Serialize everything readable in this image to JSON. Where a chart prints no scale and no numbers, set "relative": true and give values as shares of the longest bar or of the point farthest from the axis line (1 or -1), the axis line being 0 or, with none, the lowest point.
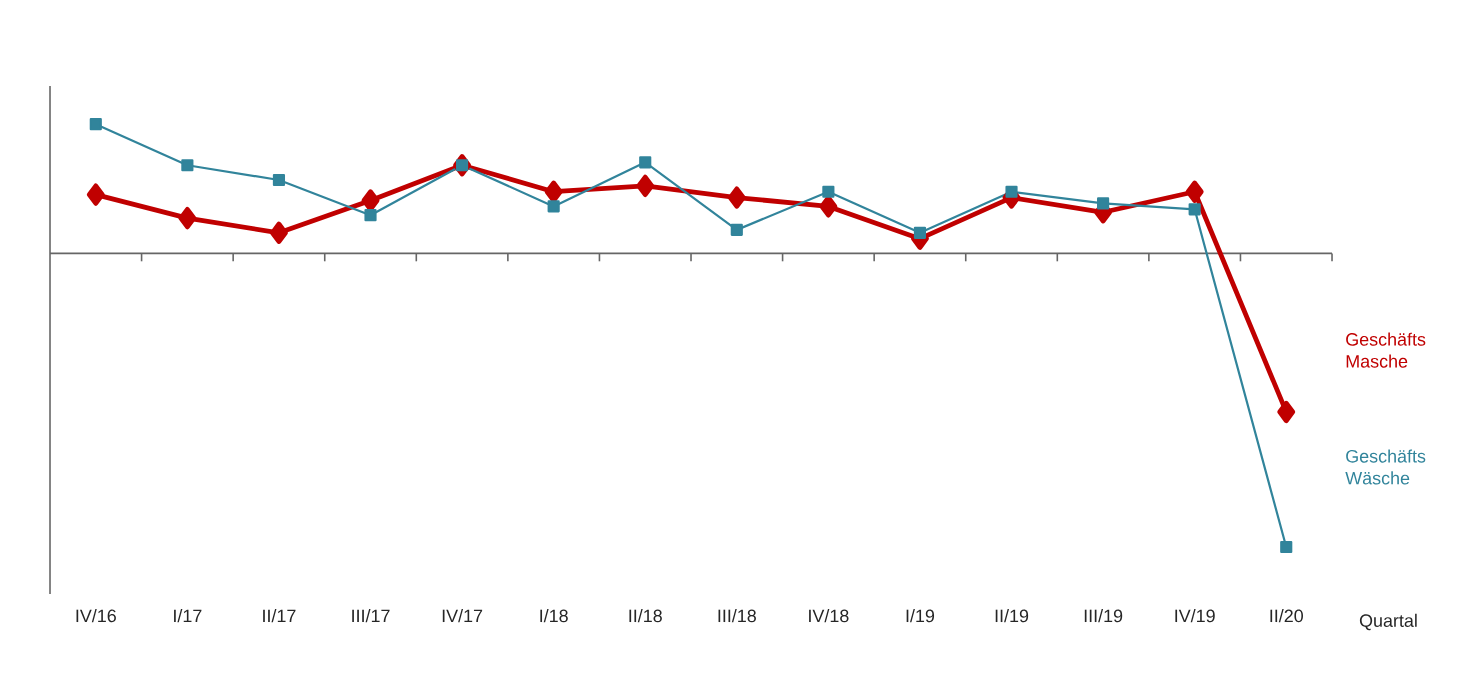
{
  "chart_data": {
    "type": "line",
    "relative": true,
    "xlabel": "Quartal",
    "categories": [
      "IV/16",
      "I/17",
      "II/17",
      "III/17",
      "IV/17",
      "I/18",
      "II/18",
      "III/18",
      "IV/18",
      "I/19",
      "II/19",
      "III/19",
      "IV/19",
      "II/20"
    ],
    "series": [
      {
        "name": "Geschäfts Masche",
        "color": "#c00000",
        "marker": "diamond",
        "values": [
          0.2,
          0.12,
          0.07,
          0.18,
          0.3,
          0.21,
          0.23,
          0.19,
          0.16,
          0.05,
          0.19,
          0.14,
          0.21,
          -0.54
        ]
      },
      {
        "name": "Geschäfts Wäsche",
        "color": "#31849b",
        "marker": "square",
        "values": [
          0.44,
          0.3,
          0.25,
          0.13,
          0.3,
          0.16,
          0.31,
          0.08,
          0.21,
          0.07,
          0.21,
          0.17,
          0.15,
          -1
        ]
      }
    ]
  }
}
